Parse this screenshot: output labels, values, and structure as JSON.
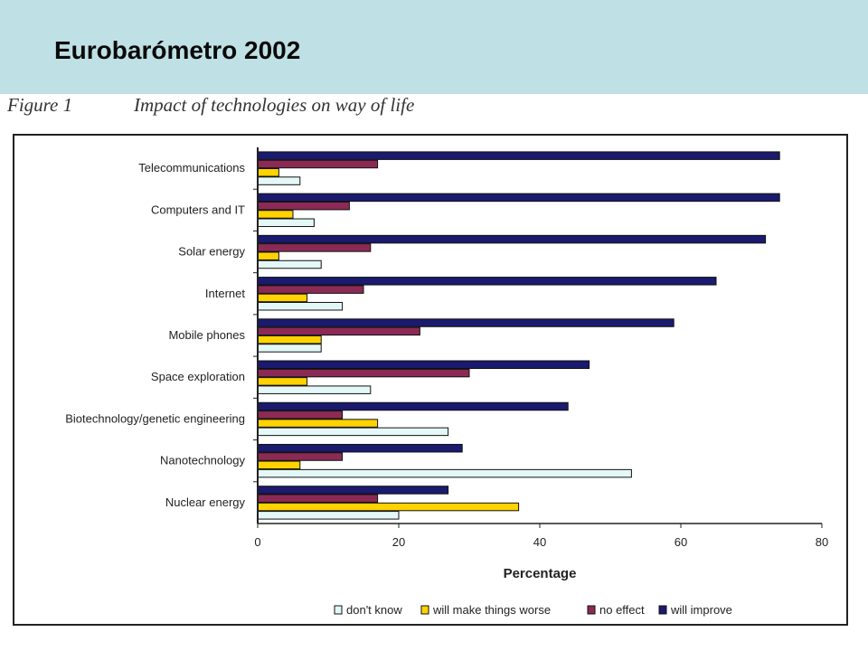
{
  "slide": {
    "title": "Eurobarómetro 2002",
    "figure_label": "Figure 1",
    "figure_caption": "Impact of technologies on way of life"
  },
  "colors": {
    "header_band": "#bfe0e4",
    "dont_know": "#e4f8f8",
    "worse": "#ffd200",
    "no_effect": "#8b2a55",
    "improve": "#1a1a6e"
  },
  "chart_data": {
    "type": "bar",
    "orientation": "horizontal",
    "title": "Impact of technologies on way of life",
    "xlabel": "Percentage",
    "ylabel": "",
    "xlim": [
      0,
      80
    ],
    "xticks": [
      "0",
      "20",
      "40",
      "60",
      "80"
    ],
    "legend_position": "bottom",
    "categories": [
      "Telecommunications",
      "Computers and IT",
      "Solar energy",
      "Internet",
      "Mobile phones",
      "Space exploration",
      "Biotechnology/genetic engineering",
      "Nanotechnology",
      "Nuclear energy"
    ],
    "series": [
      {
        "name": "will improve",
        "color": "#1a1a6e",
        "values": [
          74,
          74,
          72,
          65,
          59,
          47,
          44,
          29,
          27
        ]
      },
      {
        "name": "no effect",
        "color": "#8b2a55",
        "values": [
          17,
          13,
          16,
          15,
          23,
          30,
          12,
          12,
          17
        ]
      },
      {
        "name": "will make things worse",
        "color": "#ffd200",
        "values": [
          3,
          5,
          3,
          7,
          9,
          7,
          17,
          6,
          37
        ]
      },
      {
        "name": "don't know",
        "color": "#e4f8f8",
        "values": [
          6,
          8,
          9,
          12,
          9,
          16,
          27,
          53,
          20
        ]
      }
    ],
    "legend_order": [
      "don't know",
      "will make things worse",
      "no effect",
      "will improve"
    ]
  }
}
